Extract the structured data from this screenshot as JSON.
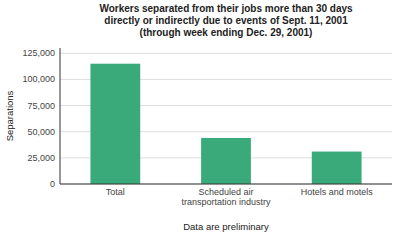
{
  "chart_data": {
    "type": "bar",
    "title": "Workers separated from their jobs more than 30 days\ndirectly or indirectly due to events of Sept. 11, 2001\n(through week ending Dec. 29, 2001)",
    "x_label": "Data are preliminary",
    "y_label": "Separations",
    "categories": [
      "Total",
      "Scheduled air\ntransportation industry",
      "Hotels and motels"
    ],
    "values": [
      115000,
      44000,
      31000
    ],
    "color": "#3aaa7a",
    "ylim": [
      0,
      130000
    ],
    "yticks": [
      0,
      {
        "value": 25000,
        "label": "25,000"
      },
      {
        "value": 50000,
        "label": "50,000"
      },
      {
        "value": 75000,
        "label": "75,000"
      },
      {
        "value": 100000,
        "label": "100,000"
      },
      {
        "value": 125000,
        "label": "125,000"
      }
    ],
    "grid": true
  }
}
